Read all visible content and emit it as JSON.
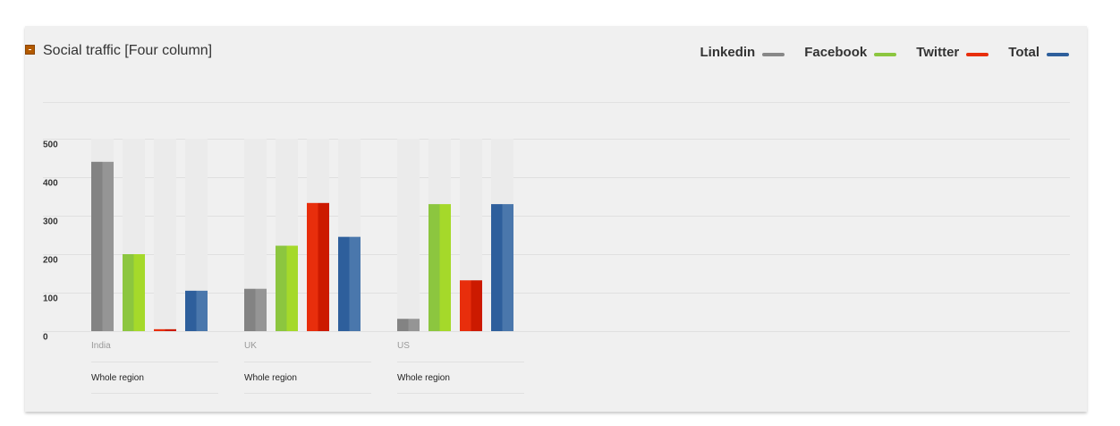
{
  "panel": {
    "title": "Social traffic [Four column]",
    "collapse_icon": "minus-square-icon"
  },
  "chart_data": {
    "type": "bar",
    "categories": [
      "India",
      "UK",
      "US"
    ],
    "category_sublabel": "Whole region",
    "series": [
      {
        "name": "Linkedin",
        "color": "#888888",
        "values": [
          440,
          110,
          32
        ]
      },
      {
        "name": "Facebook",
        "color": "#8cc63f",
        "values": [
          200,
          222,
          330
        ]
      },
      {
        "name": "Twitter",
        "color": "#e82e0c",
        "values": [
          5,
          333,
          132
        ]
      },
      {
        "name": "Total",
        "color": "#2e5f9c",
        "values": [
          105,
          245,
          330
        ]
      }
    ],
    "yticks": [
      "0",
      "100",
      "200",
      "300",
      "400",
      "500"
    ],
    "ylim": [
      0,
      500
    ],
    "legend_position": "top-right",
    "grid": true
  }
}
